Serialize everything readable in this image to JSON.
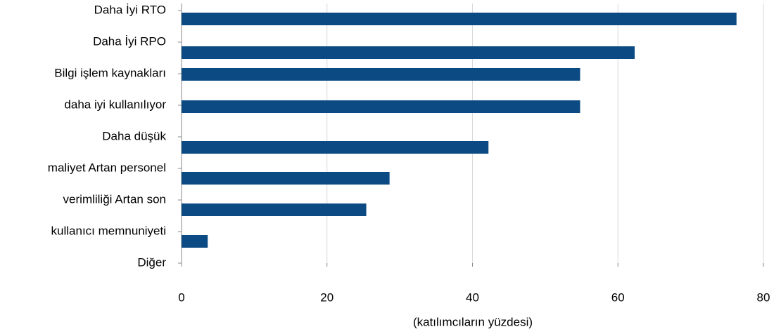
{
  "chart_data": {
    "type": "barh",
    "x_label": "(katılımcıların yüzdesi)",
    "categories": [
      "Daha İyi RTO",
      "Daha İyi RPO",
      "Bilgi işlem kaynakları",
      "daha iyi kullanılıyor",
      "Daha düşük",
      "maliyet Artan personel",
      "verimliliği Artan son",
      "kullanıcı memnuniyeti",
      "Diğer"
    ],
    "values": [
      76.3,
      62.3,
      54.8,
      54.8,
      42.2,
      28.6,
      25.4,
      3.6,
      null
    ],
    "color": "#0b4a83",
    "xlim": [
      0,
      80
    ],
    "xticks": [
      0,
      20,
      40,
      60,
      80
    ],
    "grid": true
  }
}
